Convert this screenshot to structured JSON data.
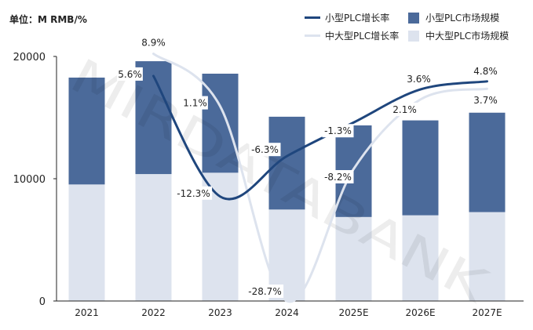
{
  "chart_data": {
    "type": "bar",
    "stacked": true,
    "unit_label": "单位：M RMB/%",
    "categories": [
      "2021",
      "2022",
      "2023",
      "2024",
      "2025E",
      "2026E",
      "2027E"
    ],
    "ylim": [
      0,
      20000
    ],
    "yticks": [
      "0",
      "10000",
      "20000"
    ],
    "series": [
      {
        "name": "中大型PLC市场规模",
        "kind": "bar",
        "color": "#dde3ee",
        "values": [
          9530,
          10380,
          10490,
          7480,
          6870,
          7010,
          7270
        ]
      },
      {
        "name": "小型PLC市场规模",
        "kind": "bar",
        "color": "#4b6a9a",
        "values": [
          8740,
          9230,
          8100,
          7590,
          7490,
          7760,
          8130
        ]
      },
      {
        "name": "小型PLC增长率",
        "kind": "line",
        "axis": "secondary",
        "color": "#1f467d",
        "values": [
          null,
          5.6,
          -12.3,
          -6.3,
          -1.3,
          3.6,
          4.8
        ],
        "labels": [
          "",
          "5.6%",
          "-12.3%",
          "-6.3%",
          "-1.3%",
          "3.6%",
          "4.8%"
        ]
      },
      {
        "name": "中大型PLC增长率",
        "kind": "line",
        "axis": "secondary",
        "color": "#dde3ee",
        "values": [
          null,
          8.9,
          1.1,
          -28.7,
          -8.2,
          2.1,
          3.7
        ],
        "labels": [
          "",
          "8.9%",
          "1.1%",
          "-28.7%",
          "-8.2%",
          "2.1%",
          "3.7%"
        ]
      }
    ],
    "secondary_ylim": [
      -27.8,
      8.5
    ],
    "secondary_axis_visible": false,
    "legend_position": "top-right",
    "grid": false
  },
  "watermark": "MIRDATABANK"
}
